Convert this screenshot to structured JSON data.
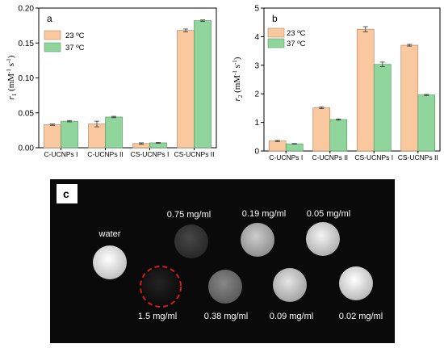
{
  "colors": {
    "series_23": "#f9c89f",
    "series_37": "#90d69c",
    "frame": "#000000",
    "mri_background": "#0a0a0a",
    "highlight_ring": "#d11f1f"
  },
  "chart_data": [
    {
      "type": "bar",
      "panel_label": "a",
      "categories": [
        "C-UCNPs I",
        "C-UCNPs II",
        "CS-UCNPs I",
        "CS-UCNPs II"
      ],
      "series": [
        {
          "name": "23 ºC",
          "values": [
            0.033,
            0.034,
            0.006,
            0.168
          ],
          "errors": [
            0.001,
            0.004,
            0.001,
            0.002
          ]
        },
        {
          "name": "37 ºC",
          "values": [
            0.038,
            0.044,
            0.007,
            0.182
          ],
          "errors": [
            0.001,
            0.001,
            0.0005,
            0.001
          ]
        }
      ],
      "ylabel_var": "r",
      "ylabel_sub": "1",
      "ylabel_units": " (mM",
      "ylabel_exp1": "-1",
      "ylabel_mid": " s",
      "ylabel_exp2": "-1",
      "ylabel_close": ")",
      "ylim": [
        0,
        0.2
      ],
      "yticks": [
        0.0,
        0.05,
        0.1,
        0.15,
        0.2
      ],
      "ytick_labels": [
        "0.00",
        "0.05",
        "0.10",
        "0.15",
        "0.20"
      ],
      "legend_position": "top-left",
      "grid": false
    },
    {
      "type": "bar",
      "panel_label": "b",
      "categories": [
        "C-UCNPs I",
        "C-UCNPs II",
        "CS-UCNPs I",
        "CS-UCNPs II"
      ],
      "series": [
        {
          "name": "23 ºC",
          "values": [
            0.35,
            1.51,
            4.26,
            3.7
          ],
          "errors": [
            0.02,
            0.03,
            0.09,
            0.03
          ]
        },
        {
          "name": "37 ºC",
          "values": [
            0.25,
            1.1,
            3.03,
            1.96
          ],
          "errors": [
            0.01,
            0.02,
            0.08,
            0.02
          ]
        }
      ],
      "ylabel_var": "r",
      "ylabel_sub": "2",
      "ylabel_units": " (mM",
      "ylabel_exp1": "-1",
      "ylabel_mid": " s",
      "ylabel_exp2": "-1",
      "ylabel_close": ")",
      "ylim": [
        0,
        5
      ],
      "yticks": [
        0,
        1,
        2,
        3,
        4,
        5
      ],
      "ytick_labels": [
        "0",
        "1",
        "2",
        "3",
        "4",
        "5"
      ],
      "legend_position": "top-left",
      "grid": false
    }
  ],
  "mri_panel": {
    "panel_label": "c",
    "samples": [
      {
        "label": "water",
        "brightness": 0.97
      },
      {
        "label": "0.75 mg/ml",
        "brightness": 0.2
      },
      {
        "label": "0.19 mg/ml",
        "brightness": 0.72
      },
      {
        "label": "0.05 mg/ml",
        "brightness": 0.88
      },
      {
        "label": "1.5 mg/ml",
        "brightness": 0.06,
        "highlighted": true
      },
      {
        "label": "0.38 mg/ml",
        "brightness": 0.45
      },
      {
        "label": "0.09 mg/ml",
        "brightness": 0.82
      },
      {
        "label": "0.02 mg/ml",
        "brightness": 0.93
      }
    ]
  }
}
